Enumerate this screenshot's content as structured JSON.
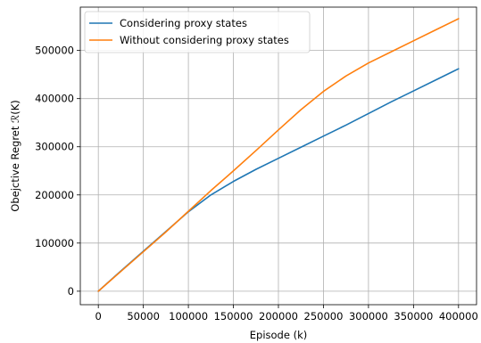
{
  "chart_data": {
    "type": "line",
    "xlabel": "Episode (k)",
    "ylabel": "Obejctive Regret ℛ(K)",
    "xlim": [
      -20000,
      420000
    ],
    "ylim": [
      -28000,
      590000
    ],
    "grid": true,
    "legend_position": "top-left",
    "x_ticks": [
      0,
      50000,
      100000,
      150000,
      200000,
      250000,
      300000,
      350000,
      400000
    ],
    "x_tick_labels": [
      "0",
      "50000",
      "100000",
      "150000",
      "200000",
      "250000",
      "300000",
      "350000",
      "400000"
    ],
    "y_ticks": [
      0,
      100000,
      200000,
      300000,
      400000,
      500000
    ],
    "y_tick_labels": [
      "0",
      "100000",
      "200000",
      "300000",
      "400000",
      "500000"
    ],
    "series": [
      {
        "name": "Considering proxy states",
        "color": "#1f77b4",
        "x": [
          0,
          25000,
          50000,
          75000,
          100000,
          125000,
          150000,
          175000,
          200000,
          225000,
          250000,
          275000,
          300000,
          325000,
          350000,
          375000,
          400000
        ],
        "y": [
          0,
          42000,
          83000,
          124000,
          165000,
          200000,
          228000,
          253000,
          276000,
          299000,
          322000,
          345000,
          369000,
          393000,
          416000,
          439000,
          462000
        ]
      },
      {
        "name": "Without considering proxy states",
        "color": "#ff7f0e",
        "x": [
          0,
          25000,
          50000,
          75000,
          100000,
          125000,
          150000,
          175000,
          200000,
          225000,
          250000,
          275000,
          300000,
          325000,
          350000,
          375000,
          400000
        ],
        "y": [
          0,
          41000,
          82000,
          123000,
          166000,
          209000,
          250000,
          292000,
          335000,
          377000,
          415000,
          447000,
          474000,
          497000,
          520000,
          543000,
          566000
        ]
      }
    ]
  }
}
